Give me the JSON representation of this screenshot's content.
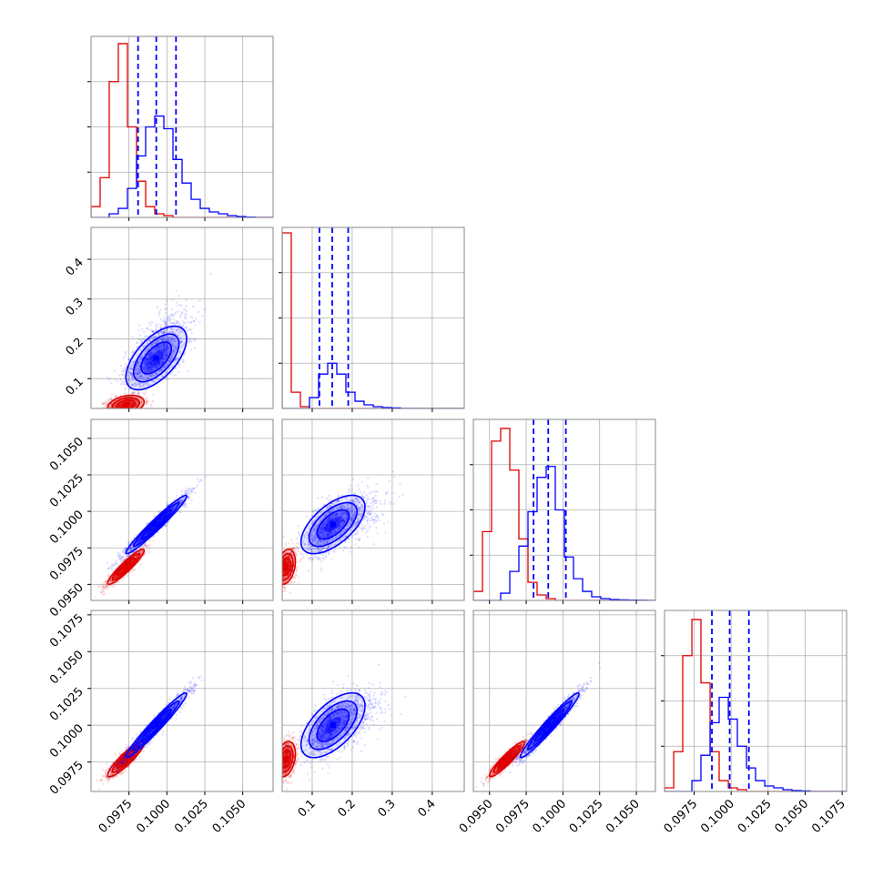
{
  "chart_data": {
    "type": "corner",
    "n_params": 4,
    "colors": {
      "red": "#e00000",
      "blue": "#0000ff",
      "grid": "#b0b0b0",
      "frame": "#888888"
    },
    "quantiles": {
      "0": [
        0.0981,
        0.0993,
        0.1006
      ],
      "1": [
        0.118,
        0.15,
        0.19
      ],
      "2": [
        0.098,
        0.099,
        0.1002
      ],
      "3": [
        0.0987,
        0.0999,
        0.1012
      ]
    },
    "axes": {
      "0": {
        "range": [
          0.095,
          0.107
        ],
        "ticks": [
          0.0975,
          0.1,
          0.1025,
          0.105
        ],
        "labels": [
          "0.0975",
          "0.1000",
          "0.1025",
          "0.1050"
        ]
      },
      "1": {
        "range": [
          0.025,
          0.48
        ],
        "ticks": [
          0.1,
          0.2,
          0.3,
          0.4
        ],
        "labels": [
          "0.1",
          "0.2",
          "0.3",
          "0.4"
        ]
      },
      "2": {
        "range": [
          0.0939,
          0.1063
        ],
        "ticks": [
          0.095,
          0.0975,
          0.1,
          0.1025,
          0.105
        ],
        "labels": [
          "0.0950",
          "0.0975",
          "0.1000",
          "0.1025",
          "0.1050"
        ]
      },
      "3": {
        "range": [
          0.0955,
          0.1078
        ],
        "ticks": [
          0.0975,
          0.1,
          0.1025,
          0.105,
          0.1075
        ],
        "labels": [
          "0.0975",
          "0.1000",
          "0.1025",
          "0.1050",
          "0.1075"
        ]
      }
    },
    "histograms": {
      "0": {
        "bins": [
          0.095,
          0.0956,
          0.0962,
          0.0968,
          0.0974,
          0.098,
          0.0986,
          0.0992,
          0.0998,
          0.1004,
          0.101,
          0.1016,
          0.1022,
          0.1028,
          0.1034,
          0.104,
          0.1046,
          0.1052,
          0.1058,
          0.1064,
          0.107
        ],
        "red": [
          0.06,
          0.22,
          0.75,
          0.96,
          0.5,
          0.2,
          0.06,
          0.02,
          0.01,
          0,
          0,
          0,
          0,
          0,
          0,
          0,
          0,
          0,
          0,
          0
        ],
        "blue": [
          0,
          0,
          0.02,
          0.05,
          0.16,
          0.34,
          0.5,
          0.56,
          0.49,
          0.32,
          0.19,
          0.1,
          0.05,
          0.03,
          0.02,
          0.01,
          0.005,
          0.002,
          0,
          0
        ]
      },
      "1": {
        "bins": [
          0.025,
          0.0477,
          0.0705,
          0.0932,
          0.116,
          0.1387,
          0.1615,
          0.1842,
          0.207,
          0.2297,
          0.2525,
          0.2752,
          0.298,
          0.3207,
          0.3435,
          0.3662,
          0.389,
          0.4117,
          0.4345,
          0.4572,
          0.48
        ],
        "red": [
          0.97,
          0.09,
          0.01,
          0,
          0,
          0,
          0,
          0,
          0,
          0,
          0,
          0,
          0,
          0,
          0,
          0,
          0,
          0,
          0,
          0
        ],
        "blue": [
          0,
          0,
          0,
          0.06,
          0.19,
          0.25,
          0.19,
          0.09,
          0.04,
          0.02,
          0.01,
          0.005,
          0.003,
          0,
          0,
          0,
          0,
          0,
          0,
          0
        ]
      },
      "2": {
        "bins": [
          0.0939,
          0.09452,
          0.09514,
          0.09576,
          0.09638,
          0.097,
          0.09762,
          0.09824,
          0.09886,
          0.09948,
          0.1001,
          0.10072,
          0.10134,
          0.10196,
          0.10258,
          0.1032,
          0.10382,
          0.10444,
          0.10506,
          0.10568,
          0.1063
        ],
        "red": [
          0.05,
          0.38,
          0.88,
          0.95,
          0.72,
          0.34,
          0.1,
          0.03,
          0.01,
          0,
          0,
          0,
          0,
          0,
          0,
          0,
          0,
          0,
          0,
          0
        ],
        "blue": [
          0,
          0,
          0,
          0.04,
          0.16,
          0.3,
          0.49,
          0.68,
          0.74,
          0.5,
          0.24,
          0.12,
          0.05,
          0.02,
          0.01,
          0.005,
          0.003,
          0.002,
          0.001,
          0
        ]
      },
      "3": {
        "bins": [
          0.0955,
          0.09612,
          0.09673,
          0.09735,
          0.09796,
          0.09858,
          0.09919,
          0.09981,
          0.10042,
          0.10104,
          0.10165,
          0.10227,
          0.10288,
          0.1035,
          0.10411,
          0.10473,
          0.10534,
          0.10596,
          0.10657,
          0.10719,
          0.1078
        ],
        "red": [
          0.02,
          0.22,
          0.75,
          0.95,
          0.6,
          0.22,
          0.06,
          0.02,
          0.01,
          0,
          0,
          0,
          0,
          0,
          0,
          0,
          0,
          0,
          0,
          0
        ],
        "blue": [
          0,
          0,
          0,
          0.06,
          0.2,
          0.38,
          0.52,
          0.4,
          0.25,
          0.13,
          0.06,
          0.03,
          0.02,
          0.01,
          0.005,
          0.003,
          0,
          0,
          0,
          0
        ]
      }
    },
    "distributions": {
      "red": {
        "mean": [
          0.0973,
          0.034,
          0.0962,
          0.0977
        ],
        "sd": [
          0.0006,
          0.012,
          0.0006,
          0.0006
        ],
        "corr": [
          [
            1,
            0.3,
            0.93,
            0.9
          ],
          [
            0.3,
            1,
            0.3,
            0.3
          ],
          [
            0.93,
            0.3,
            1,
            0.93
          ],
          [
            0.9,
            0.3,
            0.93,
            1
          ]
        ]
      },
      "blue": {
        "mean": [
          0.0993,
          0.152,
          0.0991,
          0.1
        ],
        "sd": [
          0.001,
          0.04,
          0.001,
          0.0011
        ],
        "corr": [
          [
            1,
            0.6,
            0.97,
            0.97
          ],
          [
            0.6,
            1,
            0.6,
            0.6
          ],
          [
            0.97,
            0.6,
            1,
            0.97
          ],
          [
            0.97,
            0.6,
            0.97,
            1
          ]
        ]
      }
    },
    "contour_levels_sigma": [
      0.5,
      1.0,
      1.5,
      2.0
    ],
    "title": "",
    "legend": "none"
  }
}
